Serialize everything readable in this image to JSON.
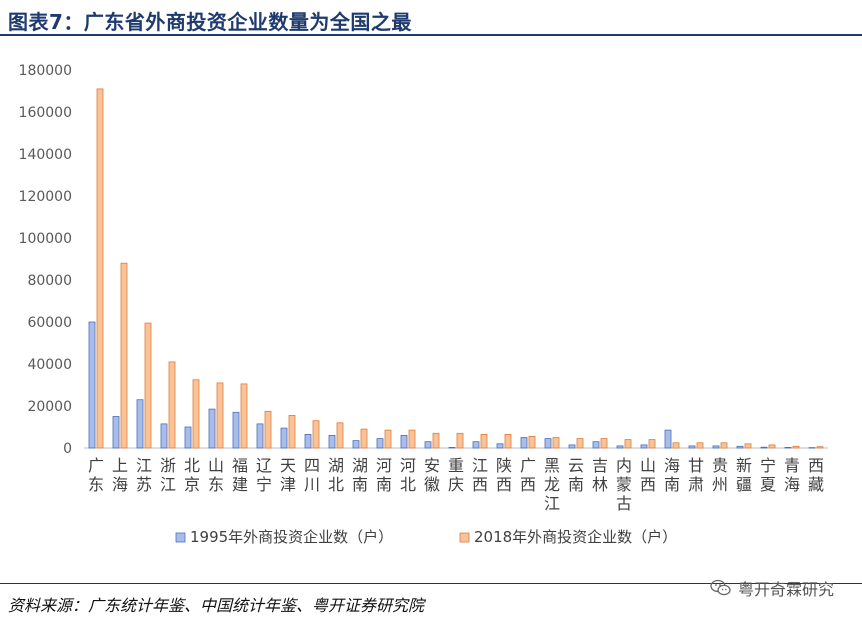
{
  "header": {
    "title": "图表7：广东省外商投资企业数量为全国之最"
  },
  "footer": {
    "source": "资料来源：广东统计年鉴、中国统计年鉴、粤开证券研究院",
    "watermark": "粤开奇霖研究",
    "watermark_icon": "wechat-icon"
  },
  "colors": {
    "title": "#1f3a6e",
    "series_1995_fill": "#a9bde8",
    "series_1995_stroke": "#4a6fc0",
    "series_2018_fill": "#f9c39a",
    "series_2018_stroke": "#e07b39"
  },
  "chart_data": {
    "type": "bar",
    "title": "",
    "xlabel": "",
    "ylabel": "",
    "ylim": [
      0,
      180000
    ],
    "yticks": [
      "0",
      "20000",
      "40000",
      "60000",
      "80000",
      "100000",
      "120000",
      "140000",
      "160000",
      "180000"
    ],
    "grid": false,
    "legend_position": "bottom",
    "categories": [
      "广东",
      "上海",
      "江苏",
      "浙江",
      "北京",
      "山东",
      "福建",
      "辽宁",
      "天津",
      "四川",
      "湖北",
      "湖南",
      "河南",
      "河北",
      "安徽",
      "重庆",
      "江西",
      "陕西",
      "广西",
      "黑龙江",
      "云南",
      "吉林",
      "内蒙古",
      "山西",
      "海南",
      "甘肃",
      "贵州",
      "新疆",
      "宁夏",
      "青海",
      "西藏"
    ],
    "series": [
      {
        "name": "1995年外商投资企业数（户）",
        "values": [
          60000,
          15000,
          23000,
          11500,
          10000,
          18500,
          17000,
          11500,
          9500,
          6500,
          6000,
          3500,
          4500,
          6000,
          3000,
          300,
          3000,
          2000,
          5000,
          4500,
          1500,
          3000,
          1000,
          1500,
          8500,
          1000,
          1000,
          800,
          400,
          300,
          200
        ],
        "color": "#a9bde8"
      },
      {
        "name": "2018年外商投资企业数（户）",
        "values": [
          171000,
          88000,
          59500,
          41000,
          32500,
          31000,
          30500,
          17500,
          15500,
          13000,
          12000,
          9000,
          8500,
          8500,
          7000,
          7000,
          6500,
          6500,
          5500,
          5000,
          4500,
          4500,
          4000,
          4000,
          2500,
          2500,
          2500,
          2000,
          1500,
          800,
          600
        ],
        "color": "#f9c39a"
      }
    ]
  }
}
